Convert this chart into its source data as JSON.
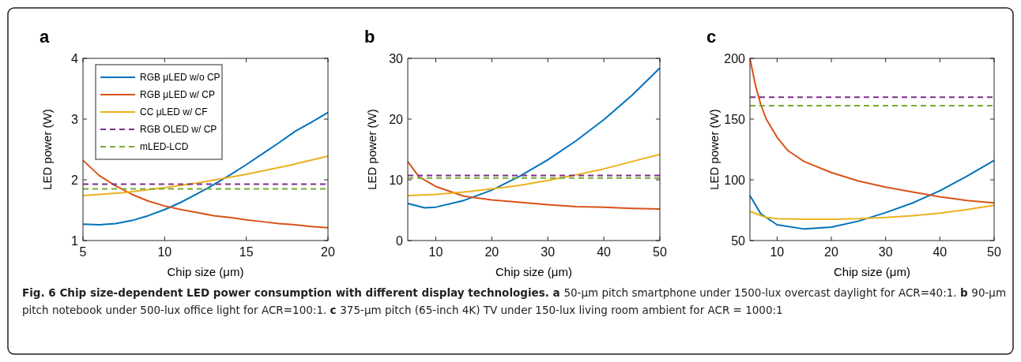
{
  "chart_data": [
    {
      "type": "line",
      "title": "a",
      "xlabel": "Chip size (μm)",
      "ylabel": "LED power (W)",
      "xlim": [
        5,
        20
      ],
      "ylim": [
        1,
        4
      ],
      "xticks": [
        5,
        10,
        15,
        20
      ],
      "yticks": [
        1,
        2,
        3,
        4
      ],
      "legend": "top left",
      "grid": false,
      "series": [
        {
          "name": "RGB μLED w/o CP",
          "color": "#0072bd",
          "x": [
            5,
            6,
            7,
            8,
            9,
            10,
            11,
            12,
            13,
            14,
            15,
            16,
            17,
            18,
            19,
            20
          ],
          "values": [
            1.27,
            1.26,
            1.28,
            1.33,
            1.41,
            1.51,
            1.63,
            1.77,
            1.92,
            2.08,
            2.25,
            2.43,
            2.61,
            2.8,
            2.95,
            3.11
          ]
        },
        {
          "name": "RGB μLED w/ CP",
          "color": "#d95319",
          "x": [
            5,
            6,
            7,
            8,
            9,
            10,
            11,
            12,
            13,
            14,
            15,
            16,
            17,
            18,
            19,
            20
          ],
          "values": [
            2.32,
            2.07,
            1.9,
            1.76,
            1.65,
            1.57,
            1.51,
            1.46,
            1.41,
            1.38,
            1.34,
            1.31,
            1.28,
            1.26,
            1.23,
            1.21
          ]
        },
        {
          "name": "CC μLED w/ CF",
          "color": "#edb120",
          "x": [
            5,
            7.5,
            10,
            12.5,
            15,
            17.5,
            20
          ],
          "values": [
            1.74,
            1.79,
            1.87,
            1.97,
            2.09,
            2.23,
            2.39
          ]
        },
        {
          "name": "RGB OLED w/ CP",
          "color": "#7e2f8e",
          "line_style": "dashed",
          "x": [
            5,
            20
          ],
          "values": [
            1.93,
            1.93
          ]
        },
        {
          "name": "mLED-LCD",
          "color": "#77ac30",
          "line_style": "dashed",
          "x": [
            5,
            20
          ],
          "values": [
            1.85,
            1.85
          ]
        }
      ],
      "annotations": [
        "Fig. 6 Chip size-dependent LED power consumption with different display technologies.",
        "a",
        "50-µm pitch smartphone under 1500-lux overcast daylight for ACR=40:1.",
        "b",
        "90-µm pitch notebook under 500-lux office light for ACR=100:1.",
        "c",
        "375-µm pitch (65-inch 4K) TV under 150-lux living room ambient for ACR = 1000:1"
      ]
    },
    {
      "type": "line",
      "title": "b",
      "xlabel": "Chip size (μm)",
      "ylabel": "LED power (W)",
      "xlim": [
        5,
        50
      ],
      "ylim": [
        0,
        30
      ],
      "xticks": [
        10,
        20,
        30,
        40,
        50
      ],
      "yticks": [
        0,
        10,
        20,
        30
      ],
      "grid": false,
      "series": [
        {
          "color": "#0072bd",
          "x": [
            5,
            8,
            10,
            15,
            20,
            25,
            30,
            35,
            40,
            45,
            50
          ],
          "values": [
            6.1,
            5.4,
            5.5,
            6.6,
            8.3,
            10.6,
            13.3,
            16.4,
            19.9,
            23.9,
            28.4
          ]
        },
        {
          "color": "#d95319",
          "x": [
            5,
            7,
            10,
            15,
            20,
            25,
            30,
            35,
            40,
            45,
            50
          ],
          "values": [
            13,
            10.5,
            8.9,
            7.3,
            6.7,
            6.3,
            5.9,
            5.6,
            5.5,
            5.3,
            5.2
          ]
        },
        {
          "color": "#edb120",
          "x": [
            5,
            10,
            15,
            20,
            25,
            30,
            35,
            40,
            45,
            50
          ],
          "values": [
            7.4,
            7.6,
            8.0,
            8.5,
            9.1,
            9.9,
            10.8,
            11.8,
            13.0,
            14.2
          ]
        },
        {
          "color": "#7e2f8e",
          "line_style": "dashed",
          "x": [
            5,
            50
          ],
          "values": [
            10.7,
            10.7
          ]
        },
        {
          "color": "#77ac30",
          "line_style": "dashed",
          "x": [
            5,
            50
          ],
          "values": [
            10.3,
            10.3
          ]
        }
      ]
    },
    {
      "type": "line",
      "title": "c",
      "xlabel": "Chip size (μm)",
      "ylabel": "LED power (W)",
      "xlim": [
        5,
        50
      ],
      "ylim": [
        50,
        200
      ],
      "xticks": [
        10,
        20,
        30,
        40,
        50
      ],
      "yticks": [
        50,
        100,
        150,
        200
      ],
      "grid": false,
      "series": [
        {
          "color": "#0072bd",
          "x": [
            5,
            7,
            10,
            15,
            20,
            25,
            30,
            35,
            40,
            45,
            50
          ],
          "values": [
            87,
            72,
            63,
            59.5,
            61,
            66,
            73,
            81,
            91,
            103,
            116
          ]
        },
        {
          "color": "#d95319",
          "x": [
            5,
            6,
            7,
            8,
            10,
            12,
            15,
            20,
            25,
            30,
            35,
            40,
            45,
            50
          ],
          "values": [
            200,
            178,
            162,
            150,
            135,
            124,
            115,
            106,
            99,
            94,
            90,
            86,
            83,
            81
          ]
        },
        {
          "color": "#edb120",
          "x": [
            5,
            8,
            10,
            15,
            20,
            25,
            30,
            35,
            40,
            45,
            50
          ],
          "values": [
            74,
            69,
            68,
            67.5,
            67.5,
            68,
            69,
            70.5,
            72.5,
            75.5,
            79
          ]
        },
        {
          "color": "#7e2f8e",
          "line_style": "dashed",
          "x": [
            5,
            50
          ],
          "values": [
            168,
            168
          ]
        },
        {
          "color": "#77ac30",
          "line_style": "dashed",
          "x": [
            5,
            50
          ],
          "values": [
            161,
            161
          ]
        }
      ]
    }
  ]
}
